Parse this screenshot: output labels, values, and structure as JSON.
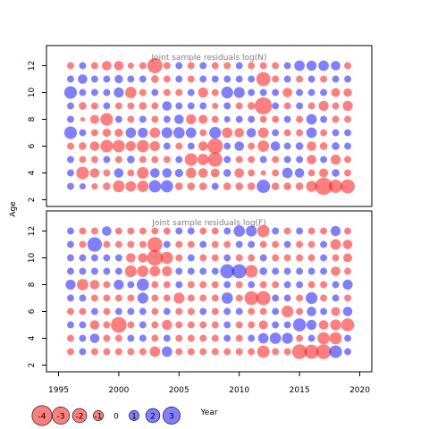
{
  "chart_data": {
    "type": "scatter",
    "ylabel": "Age",
    "xlabel": "Year",
    "xlim": [
      1994,
      2021
    ],
    "ylim": [
      1.5,
      13.5
    ],
    "x_ticks": [
      1995,
      2000,
      2005,
      2010,
      2015,
      2020
    ],
    "y_ticks": [
      2,
      4,
      6,
      8,
      10,
      12
    ],
    "years": [
      1996,
      1997,
      1998,
      1999,
      2000,
      2001,
      2002,
      2003,
      2004,
      2005,
      2006,
      2007,
      2008,
      2009,
      2010,
      2011,
      2012,
      2013,
      2014,
      2015,
      2016,
      2017,
      2018,
      2019
    ],
    "positive_color": "#0000ff",
    "negative_color": "#ff0000",
    "panels": [
      {
        "title": "Joint sample residuals log(N)",
        "ages": [
          3,
          4,
          5,
          6,
          7,
          8,
          9,
          10,
          11,
          12
        ],
        "residuals": [
          [
            0.5,
            0.4,
            -0.4,
            -0.6,
            -1.4,
            -1.1,
            -1.3,
            1.5,
            1.5,
            -0.6,
            -0.6,
            -0.6,
            0.5,
            -0.6,
            -0.6,
            -0.6,
            1.8,
            -0.6,
            -0.6,
            -0.6,
            -1.2,
            -3.0,
            -1.8,
            -2.0
          ],
          [
            0.5,
            -1.6,
            -0.9,
            -0.5,
            0.9,
            -0.5,
            -1.4,
            0.9,
            0.9,
            0.7,
            -1.1,
            -0.9,
            -0.8,
            0.6,
            -0.9,
            -0.5,
            -0.3,
            -0.5,
            1.1,
            0.9,
            -0.5,
            -0.8,
            0.6,
            -0.5
          ],
          [
            0.5,
            -0.5,
            -0.5,
            0.5,
            -0.5,
            0.6,
            -0.5,
            -0.5,
            -0.5,
            0.5,
            -1.6,
            -1.3,
            -2.1,
            0.5,
            -0.5,
            -0.5,
            0.5,
            -0.5,
            0.5,
            0.5,
            -0.9,
            0.5,
            -1.0,
            -0.5
          ],
          [
            -0.5,
            -0.6,
            -0.9,
            -1.6,
            -1.5,
            -1.0,
            -1.5,
            -1.0,
            0.5,
            -0.5,
            0.5,
            -0.9,
            -2.4,
            0.5,
            0.9,
            -0.5,
            -1.3,
            0.9,
            0.5,
            0.6,
            -0.9,
            -0.6,
            0.6,
            0.5
          ],
          [
            1.6,
            0.5,
            -0.5,
            -0.7,
            -0.7,
            1.1,
            1.0,
            -1.1,
            1.2,
            1.3,
            1.1,
            -0.5,
            1.4,
            -1.1,
            -0.9,
            0.9,
            -1.1,
            0.5,
            -0.5,
            -0.5,
            1.1,
            -0.5,
            0.5,
            0.5
          ],
          [
            0.5,
            -0.2,
            -0.8,
            -1.6,
            0.5,
            -0.5,
            0.5,
            -0.5,
            0.5,
            0.9,
            -1.0,
            -0.8,
            -0.5,
            0.4,
            0.5,
            0.5,
            -0.5,
            -0.5,
            0.5,
            -0.5,
            1.1,
            0.5,
            -0.5,
            -0.5
          ],
          [
            0.5,
            -0.6,
            -0.5,
            0.5,
            -0.5,
            -0.5,
            -0.6,
            -0.5,
            0.9,
            0.5,
            0.5,
            0.5,
            -0.4,
            0.5,
            -0.5,
            -0.6,
            -3.0,
            0.5,
            -0.5,
            0.5,
            -0.5,
            -1.0,
            -0.5,
            -1.0
          ],
          [
            1.6,
            0.5,
            0.5,
            0.5,
            1.0,
            -1.3,
            -0.5,
            0.5,
            -0.5,
            -0.5,
            0.5,
            -1.0,
            -0.5,
            1.4,
            1.2,
            0.5,
            0.5,
            0.5,
            -0.9,
            0.5,
            0.5,
            0.5,
            -0.8,
            -0.7
          ],
          [
            0.5,
            0.9,
            0.5,
            0.5,
            0.7,
            0.5,
            0.5,
            -0.6,
            -0.5,
            0.5,
            -0.5,
            0.5,
            0.5,
            0.5,
            0.5,
            0.5,
            -2.0,
            -0.5,
            0.5,
            -0.5,
            0.5,
            -0.5,
            0.5,
            0.5
          ],
          [
            -0.5,
            0.5,
            -0.5,
            -0.9,
            -0.9,
            -0.4,
            -0.5,
            -2.3,
            -0.5,
            0.5,
            -0.5,
            0.5,
            -0.5,
            -0.5,
            0.5,
            -0.5,
            -0.5,
            -0.5,
            0.5,
            1.1,
            1.0,
            1.1,
            0.9,
            -0.5
          ]
        ]
      },
      {
        "title": "Joint sample residuals log(F)",
        "ages": [
          3,
          4,
          5,
          6,
          7,
          8,
          9,
          10,
          11
        ],
        "residuals": [
          [
            -0.5,
            0.5,
            -0.5,
            -0.5,
            -0.5,
            -0.5,
            -0.5,
            -1.1,
            1.1,
            -0.5,
            -0.5,
            -0.5,
            -0.5,
            -0.5,
            -0.5,
            -0.5,
            -1.5,
            -0.5,
            -0.5,
            -2.2,
            -2.0,
            -2.2,
            1.6,
            0.5
          ],
          [
            -0.5,
            0.5,
            0.9,
            -0.5,
            -0.5,
            0.5,
            0.5,
            -0.5,
            0.5,
            -0.5,
            -0.5,
            -0.5,
            -0.5,
            0.5,
            -0.5,
            0.5,
            1.1,
            1.3,
            1.2,
            -0.5,
            0.5,
            -1.5,
            -1.5,
            0.5
          ],
          [
            0.5,
            0.5,
            -0.9,
            -0.5,
            -2.5,
            -0.5,
            0.5,
            -0.5,
            -1.0,
            -0.5,
            -0.5,
            -0.5,
            -0.5,
            0.5,
            -0.5,
            -0.5,
            -0.8,
            0.5,
            0.5,
            1.7,
            1.0,
            -0.9,
            -1.2,
            -1.7
          ],
          [
            -0.5,
            -0.5,
            0.5,
            -0.5,
            0.5,
            0.5,
            0.5,
            -0.5,
            0.5,
            -0.5,
            -0.5,
            0.5,
            -0.5,
            0.5,
            0.5,
            -0.5,
            -0.5,
            0.5,
            -1.4,
            -0.5,
            0.9,
            0.5,
            -0.8,
            0.9
          ],
          [
            0.5,
            0.5,
            -0.5,
            -0.5,
            -0.5,
            -0.5,
            1.2,
            -0.5,
            -0.5,
            -1.2,
            -0.5,
            -0.5,
            -0.5,
            1.3,
            -0.5,
            -1.9,
            -2.0,
            0.5,
            0.5,
            -0.5,
            1.4,
            -0.5,
            0.5,
            -0.5
          ],
          [
            1.0,
            -1.3,
            -0.9,
            -0.5,
            1.0,
            0.5,
            1.5,
            -0.5,
            -0.5,
            0.5,
            -0.5,
            -0.5,
            -0.5,
            0.5,
            -0.5,
            0.5,
            -0.5,
            -0.5,
            0.5,
            0.5,
            -0.5,
            -0.5,
            0.5,
            1.0
          ],
          [
            0.5,
            0.5,
            0.5,
            0.5,
            0.5,
            -1.4,
            -1.3,
            -1.1,
            -1.0,
            0.5,
            0.5,
            0.5,
            0.5,
            2.0,
            2.0,
            -1.6,
            0.6,
            0.5,
            0.5,
            0.5,
            0.5,
            0.5,
            -0.9,
            -0.5
          ],
          [
            0.5,
            0.5,
            0.5,
            0.5,
            0.5,
            -0.9,
            -0.9,
            -2.5,
            -1.5,
            -0.5,
            0.5,
            -0.5,
            -0.5,
            0.5,
            -0.5,
            -0.5,
            0.5,
            -0.5,
            -0.5,
            -0.5,
            -0.5,
            0.5,
            -0.5,
            -0.8
          ],
          [
            0.5,
            -0.5,
            2.1,
            -0.5,
            -0.5,
            -0.5,
            -0.5,
            -2.2,
            0.5,
            -0.5,
            -0.5,
            0.5,
            -0.5,
            -0.5,
            0.5,
            0.5,
            -0.5,
            -0.5,
            0.5,
            -0.5,
            -0.5,
            0.5,
            -1.1,
            -0.9
          ],
          [
            0.5,
            -0.5,
            -0.5,
            0.9,
            -0.5,
            -0.5,
            -0.5,
            -0.5,
            -0.5,
            0.5,
            0.5,
            -0.5,
            -0.5,
            0.5,
            1.3,
            1.2,
            -1.5,
            0.5,
            -0.5,
            0.5,
            -0.5,
            -0.5,
            1.0,
            -0.5
          ]
        ],
        "residual_ages": [
          3,
          4,
          5,
          6,
          7,
          8,
          9,
          10,
          11,
          12
        ]
      }
    ],
    "legend": {
      "position": "bottom-left",
      "values": [
        -4,
        -3,
        -2,
        -1,
        0,
        1,
        2,
        3
      ],
      "labels": [
        "-4",
        "-3",
        "-2",
        "-1",
        "0",
        "1",
        "2",
        "3"
      ]
    }
  }
}
